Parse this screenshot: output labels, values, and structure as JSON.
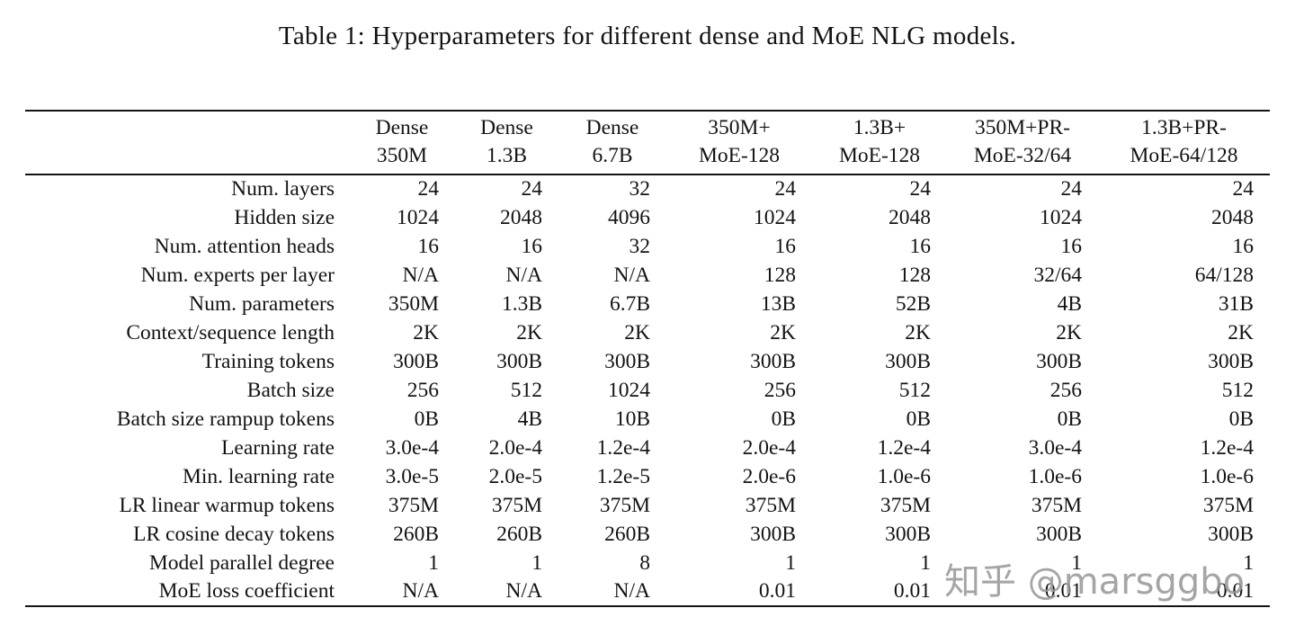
{
  "page": {
    "background": "#ffffff",
    "text_color": "#131313",
    "title": "Table 1: Hyperparameters for different dense and MoE NLG models.",
    "watermark": {
      "text": "知乎 @marsggbo",
      "color": "#989898"
    }
  },
  "table": {
    "columns": [
      {
        "line1": "Dense",
        "line2": "350M"
      },
      {
        "line1": "Dense",
        "line2": "1.3B"
      },
      {
        "line1": "Dense",
        "line2": "6.7B"
      },
      {
        "line1": "350M+",
        "line2": "MoE-128"
      },
      {
        "line1": "1.3B+",
        "line2": "MoE-128"
      },
      {
        "line1": "350M+PR-",
        "line2": "MoE-32/64"
      },
      {
        "line1": "1.3B+PR-",
        "line2": "MoE-64/128"
      }
    ],
    "rows": [
      {
        "label": "Num. layers",
        "values": [
          "24",
          "24",
          "32",
          "24",
          "24",
          "24",
          "24"
        ]
      },
      {
        "label": "Hidden size",
        "values": [
          "1024",
          "2048",
          "4096",
          "1024",
          "2048",
          "1024",
          "2048"
        ]
      },
      {
        "label": "Num. attention heads",
        "values": [
          "16",
          "16",
          "32",
          "16",
          "16",
          "16",
          "16"
        ]
      },
      {
        "label": "Num. experts per layer",
        "values": [
          "N/A",
          "N/A",
          "N/A",
          "128",
          "128",
          "32/64",
          "64/128"
        ]
      },
      {
        "label": "Num. parameters",
        "values": [
          "350M",
          "1.3B",
          "6.7B",
          "13B",
          "52B",
          "4B",
          "31B"
        ]
      },
      {
        "label": "Context/sequence length",
        "values": [
          "2K",
          "2K",
          "2K",
          "2K",
          "2K",
          "2K",
          "2K"
        ]
      },
      {
        "label": "Training tokens",
        "values": [
          "300B",
          "300B",
          "300B",
          "300B",
          "300B",
          "300B",
          "300B"
        ]
      },
      {
        "label": "Batch size",
        "values": [
          "256",
          "512",
          "1024",
          "256",
          "512",
          "256",
          "512"
        ]
      },
      {
        "label": "Batch size rampup tokens",
        "values": [
          "0B",
          "4B",
          "10B",
          "0B",
          "0B",
          "0B",
          "0B"
        ]
      },
      {
        "label": "Learning rate",
        "values": [
          "3.0e-4",
          "2.0e-4",
          "1.2e-4",
          "2.0e-4",
          "1.2e-4",
          "3.0e-4",
          "1.2e-4"
        ]
      },
      {
        "label": "Min. learning rate",
        "values": [
          "3.0e-5",
          "2.0e-5",
          "1.2e-5",
          "2.0e-6",
          "1.0e-6",
          "1.0e-6",
          "1.0e-6"
        ]
      },
      {
        "label": "LR linear warmup tokens",
        "values": [
          "375M",
          "375M",
          "375M",
          "375M",
          "375M",
          "375M",
          "375M"
        ]
      },
      {
        "label": "LR cosine decay tokens",
        "values": [
          "260B",
          "260B",
          "260B",
          "300B",
          "300B",
          "300B",
          "300B"
        ]
      },
      {
        "label": "Model parallel degree",
        "values": [
          "1",
          "1",
          "8",
          "1",
          "1",
          "1",
          "1"
        ]
      },
      {
        "label": "MoE loss coefficient",
        "values": [
          "N/A",
          "N/A",
          "N/A",
          "0.01",
          "0.01",
          "0.01",
          "0.01"
        ]
      }
    ]
  }
}
